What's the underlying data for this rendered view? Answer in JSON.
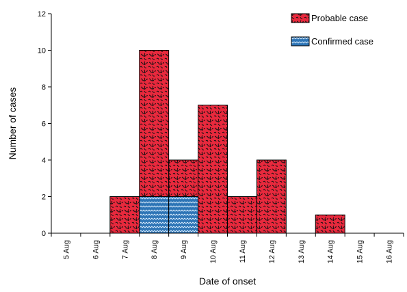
{
  "chart_data": {
    "type": "bar",
    "stacked": true,
    "title": "",
    "xlabel": "Date of onset",
    "ylabel": "Number of cases",
    "ylim": [
      0,
      12
    ],
    "yticks": [
      0,
      2,
      4,
      6,
      8,
      10,
      12
    ],
    "grid": false,
    "legend_position": "top-right",
    "categories": [
      "5 Aug",
      "6 Aug",
      "7 Aug",
      "8 Aug",
      "9 Aug",
      "10 Aug",
      "11 Aug",
      "12 Aug",
      "13 Aug",
      "14 Aug",
      "15 Aug",
      "16 Aug"
    ],
    "series": [
      {
        "name": "Confirmed case",
        "color": "#2e75b6",
        "values": [
          0,
          0,
          0,
          2,
          2,
          0,
          0,
          0,
          0,
          0,
          0,
          0
        ]
      },
      {
        "name": "Probable case",
        "color": "#e8293d",
        "values": [
          0,
          0,
          2,
          8,
          2,
          7,
          2,
          4,
          0,
          1,
          0,
          0
        ]
      }
    ],
    "legend_order": [
      "Probable case",
      "Confirmed case"
    ]
  }
}
